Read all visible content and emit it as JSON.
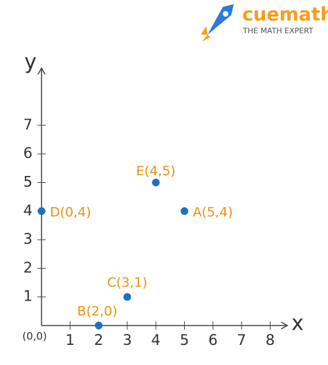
{
  "brand": {
    "name": "cuemath",
    "tagline": "THE MATH EXPERT"
  },
  "chart_data": {
    "type": "scatter",
    "x_label": "x",
    "y_label": "y",
    "origin_label": "(0,0)",
    "x": [
      5,
      2,
      3,
      0,
      4
    ],
    "values": [
      4,
      0,
      1,
      4,
      5
    ],
    "point_labels": [
      "A(5,4)",
      "B(2,0)",
      "C(3,1)",
      "D(0,4)",
      "E(4,5)"
    ],
    "color": "#1f6fc4",
    "label_color": "#e8920f",
    "xlim": [
      0,
      8.6
    ],
    "ylim": [
      0,
      9
    ],
    "xticks": [
      1,
      2,
      3,
      4,
      5,
      6,
      7,
      8
    ],
    "yticks": [
      1,
      2,
      3,
      4,
      5,
      6,
      7
    ]
  }
}
